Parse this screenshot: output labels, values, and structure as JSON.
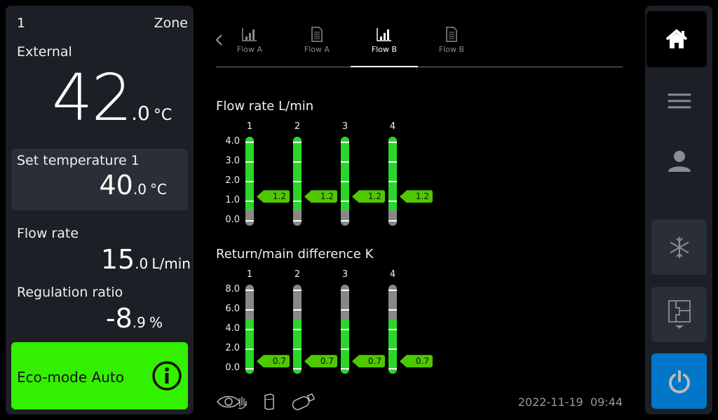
{
  "zone": {
    "number": "1",
    "label": "Zone"
  },
  "external": {
    "label": "External",
    "int": "42",
    "frac": ".0",
    "unit": "°C"
  },
  "set_temp": {
    "label": "Set temperature 1",
    "int": "40",
    "frac": ".0",
    "unit": "°C"
  },
  "flow_rate": {
    "label": "Flow rate",
    "int": "15",
    "frac": ".0",
    "unit": "L/min"
  },
  "regulation": {
    "label": "Regulation ratio",
    "int": "-8",
    "frac": ".9",
    "unit": "%"
  },
  "eco": {
    "label": "Eco-mode Auto",
    "icon": "info-icon",
    "color": "#33f000"
  },
  "tabs": [
    {
      "label": "Flow A",
      "icon": "bar-chart-icon",
      "active": false
    },
    {
      "label": "Flow A",
      "icon": "document-icon",
      "active": false
    },
    {
      "label": "Flow B",
      "icon": "bar-chart-icon",
      "active": true
    },
    {
      "label": "Flow B",
      "icon": "document-icon",
      "active": false
    }
  ],
  "chart_data": [
    {
      "type": "bar",
      "title": "Flow rate L/min",
      "categories": [
        "1",
        "2",
        "3",
        "4"
      ],
      "values": [
        1.2,
        1.2,
        1.2,
        1.2
      ],
      "value_labels": [
        "1.2",
        "1.2",
        "1.2",
        "1.2"
      ],
      "ylim": [
        0,
        4
      ],
      "yticks": [
        "0.0",
        "1.0",
        "2.0",
        "3.0",
        "4.0"
      ],
      "green_range": [
        0.5,
        4.0
      ]
    },
    {
      "type": "bar",
      "title": "Return/main difference K",
      "categories": [
        "1",
        "2",
        "3",
        "4"
      ],
      "values": [
        0.7,
        0.7,
        0.7,
        0.7
      ],
      "value_labels": [
        "0.7",
        "0.7",
        "0.7",
        "0.7"
      ],
      "ylim": [
        0,
        8
      ],
      "yticks": [
        "0.0",
        "2.0",
        "4.0",
        "6.0",
        "8.0"
      ],
      "green_range": [
        0,
        5.0
      ]
    }
  ],
  "footer": {
    "date": "2022-11-19",
    "time": "09:44",
    "icons": [
      "eye-hand-icon",
      "sd-card-icon",
      "usb-icon"
    ]
  },
  "sidebar": {
    "items": [
      "home-icon",
      "menu-icon",
      "user-icon",
      "snowflake-icon",
      "floorplan-icon",
      "power-icon"
    ],
    "power_color": "#0077c8"
  }
}
